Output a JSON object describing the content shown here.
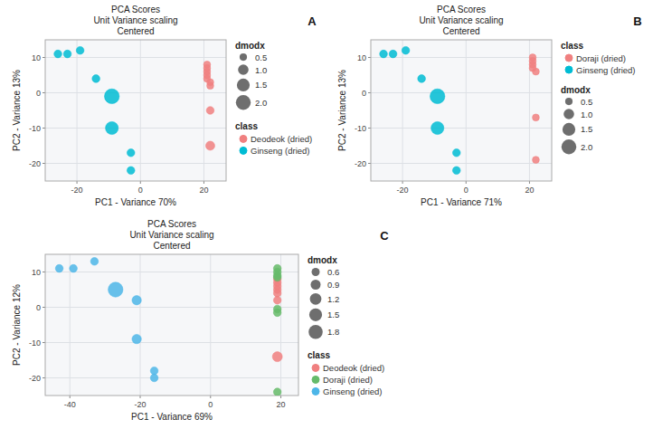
{
  "chart_data": [
    {
      "type": "scatter",
      "title": "PCA Scores\nUnit Variance scaling\nCentered",
      "xlabel": "PC1 - Variance 70%",
      "ylabel": "PC2 - Variance 13%",
      "xlim": [
        -30,
        27
      ],
      "ylim": [
        -25,
        15
      ],
      "xticks": [
        -20,
        0,
        20
      ],
      "yticks": [
        -20,
        -10,
        0,
        10
      ],
      "grid": true,
      "legend": "right",
      "legend_title": "class",
      "size_legend_title": "dmodx",
      "size_legend": [
        0.5,
        {
          "value": 1.0,
          "label": "1.0"
        },
        1.5,
        {
          "value": 2.0,
          "label": "2.0"
        }
      ],
      "annotations": [
        {
          "text": "A"
        }
      ],
      "series": [
        {
          "name": "Deodeok (dried)",
          "color": "#f08080",
          "x": [
            21,
            21,
            21,
            21,
            21,
            22,
            22,
            22,
            22
          ],
          "values": [
            8,
            7,
            6,
            5,
            4,
            3,
            2,
            -5,
            -15
          ],
          "sizes": [
            0.45,
            0.45,
            0.45,
            0.45,
            0.45,
            0.45,
            0.45,
            0.55,
            0.75
          ]
        },
        {
          "name": "Ginseng (dried)",
          "color": "#00bcd4",
          "x": [
            -26,
            -23,
            -19,
            -14,
            -9,
            -9,
            -3,
            -3
          ],
          "values": [
            11,
            11,
            12,
            4,
            -1,
            -10,
            -17,
            -22
          ],
          "sizes": [
            0.55,
            0.55,
            0.55,
            0.55,
            2.0,
            1.5,
            0.55,
            0.55
          ]
        }
      ]
    },
    {
      "type": "scatter",
      "title": "PCA Scores\nUnit Variance scaling\nCentered",
      "xlabel": "PC1 - Variance 71%",
      "ylabel": "PC2 - Variance 13%",
      "xlim": [
        -30,
        27
      ],
      "ylim": [
        -25,
        15
      ],
      "xticks": [
        -20,
        0,
        20
      ],
      "yticks": [
        -20,
        -10,
        0,
        10
      ],
      "grid": true,
      "legend": "right",
      "legend_title": "class",
      "size_legend_title": "dmodx",
      "size_legend": [
        0.5,
        {
          "value": 1.0,
          "label": "1.0"
        },
        1.5,
        {
          "value": 2.0,
          "label": "2.0"
        }
      ],
      "annotations": [
        {
          "text": "B"
        }
      ],
      "series": [
        {
          "name": "Doraji (dried)",
          "color": "#f08080",
          "x": [
            21,
            21,
            21,
            21,
            22,
            22,
            22
          ],
          "values": [
            10,
            9,
            8,
            7,
            6,
            -7,
            -19
          ],
          "sizes": [
            0.45,
            0.45,
            0.45,
            0.45,
            0.45,
            0.45,
            0.45
          ]
        },
        {
          "name": "Ginseng (dried)",
          "color": "#00bcd4",
          "x": [
            -26,
            -23,
            -19,
            -14,
            -9,
            -9,
            -3,
            -3
          ],
          "values": [
            11,
            11,
            12,
            4,
            -1,
            -10,
            -17,
            -22
          ],
          "sizes": [
            0.55,
            0.55,
            0.55,
            0.55,
            2.0,
            1.5,
            0.55,
            0.55
          ]
        }
      ]
    },
    {
      "type": "scatter",
      "title": "PCA Scores\nUnit Variance scaling\nCentered",
      "xlabel": "PC1 - Variance 69%",
      "ylabel": "PC2 - Variance 12%",
      "xlim": [
        -47,
        25
      ],
      "ylim": [
        -25,
        15
      ],
      "xticks": [
        -40,
        -20,
        0,
        20
      ],
      "yticks": [
        -20,
        -10,
        0,
        10
      ],
      "grid": true,
      "legend": "right",
      "legend_title": "class",
      "size_legend_title": "dmodx",
      "size_legend": [
        0.6,
        0.9,
        1.2,
        1.5,
        1.8
      ],
      "annotations": [
        {
          "text": "C"
        }
      ],
      "series": [
        {
          "name": "Deodeok (dried)",
          "color": "#f08080",
          "x": [
            19,
            19,
            19,
            19,
            19,
            19,
            19
          ],
          "values": [
            8,
            7,
            6,
            5,
            4,
            2,
            -14
          ],
          "sizes": [
            0.55,
            0.55,
            0.55,
            0.55,
            0.55,
            0.55,
            0.9
          ]
        },
        {
          "name": "Doraji (dried)",
          "color": "#66bb6a",
          "x": [
            19,
            19,
            19,
            19,
            19,
            19,
            19
          ],
          "values": [
            11,
            10,
            9,
            8.5,
            -0.5,
            -1.5,
            -24
          ],
          "sizes": [
            0.55,
            0.55,
            0.55,
            0.55,
            0.55,
            0.55,
            0.55
          ]
        },
        {
          "name": "Ginseng (dried)",
          "color": "#4db6e8",
          "x": [
            -43,
            -39,
            -33,
            -27,
            -21,
            -21,
            -16,
            -16
          ],
          "values": [
            11,
            11,
            13,
            5,
            2,
            -9,
            -18,
            -20
          ],
          "sizes": [
            0.55,
            0.55,
            0.55,
            2.0,
            0.8,
            0.8,
            0.55,
            0.55
          ]
        }
      ]
    }
  ]
}
